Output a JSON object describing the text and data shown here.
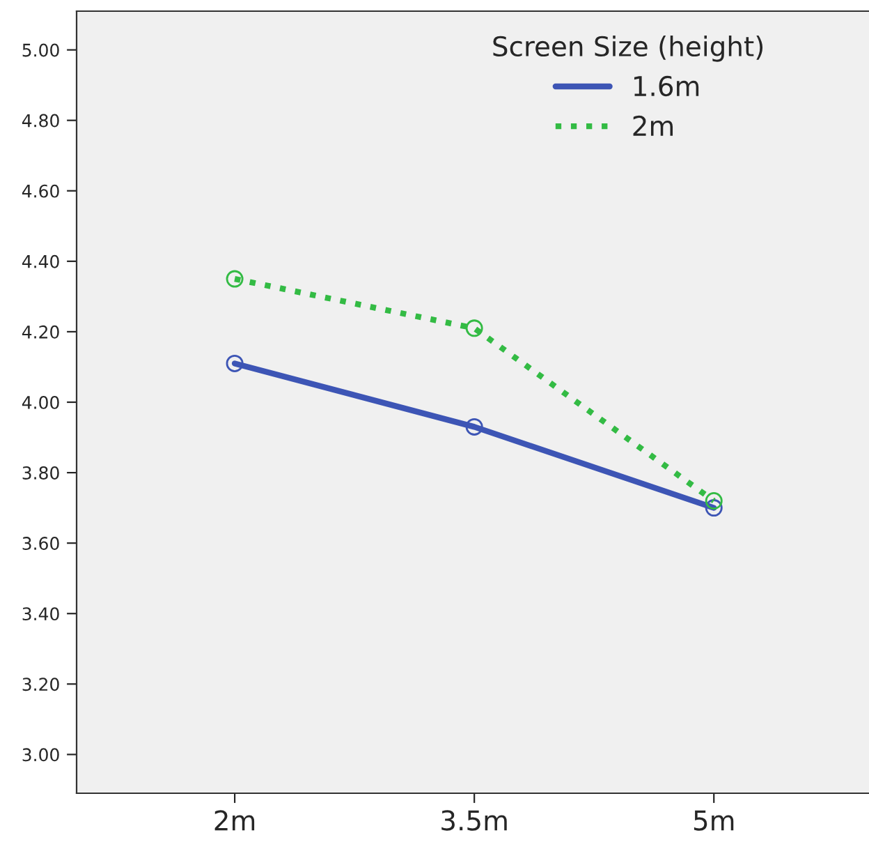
{
  "chart_data": {
    "type": "line",
    "legend_title": "Screen Size (height)",
    "categories": [
      "2m",
      "3.5m",
      "5m"
    ],
    "series": [
      {
        "name": "1.6m",
        "color": "#3d55b5",
        "values": [
          4.11,
          3.93,
          3.7
        ],
        "line_style": "solid"
      },
      {
        "name": "2m",
        "color": "#33bb44",
        "values": [
          4.35,
          4.21,
          3.72
        ],
        "line_style": "dotted"
      }
    ],
    "ylim": [
      2.89,
      5.11
    ],
    "yticks": [
      {
        "value": 3.0,
        "label": "3.00"
      },
      {
        "value": 3.2,
        "label": "3.20"
      },
      {
        "value": 3.4,
        "label": "3.40"
      },
      {
        "value": 3.6,
        "label": "3.60"
      },
      {
        "value": 3.8,
        "label": "3.80"
      },
      {
        "value": 4.0,
        "label": "4.00"
      },
      {
        "value": 4.2,
        "label": "4.20"
      },
      {
        "value": 4.4,
        "label": "4.40"
      },
      {
        "value": 4.6,
        "label": "4.60"
      },
      {
        "value": 4.8,
        "label": "4.80"
      },
      {
        "value": 5.0,
        "label": "5.00"
      }
    ],
    "grid": false,
    "legend": "top right",
    "marker": "circle"
  }
}
